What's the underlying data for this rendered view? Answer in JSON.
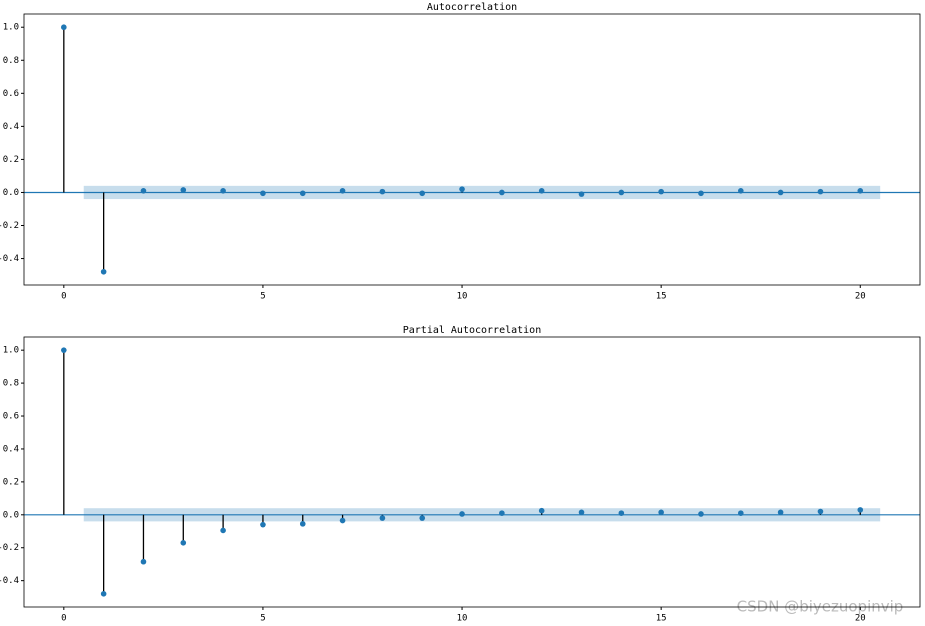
{
  "chart_data": [
    {
      "type": "stem",
      "title": "Autocorrelation",
      "color": "#1f77b4",
      "stem_color": "#000000",
      "band_color": "#1f77b4",
      "x": [
        0,
        1,
        2,
        3,
        4,
        5,
        6,
        7,
        8,
        9,
        10,
        11,
        12,
        13,
        14,
        15,
        16,
        17,
        18,
        19,
        20
      ],
      "values": [
        1.0,
        -0.48,
        0.01,
        0.015,
        0.01,
        -0.005,
        -0.005,
        0.01,
        0.005,
        -0.005,
        0.02,
        0.0,
        0.01,
        -0.01,
        0.0,
        0.005,
        -0.005,
        0.01,
        0.0,
        0.005,
        0.01
      ],
      "band": 0.04,
      "xlim": [
        -1,
        21.5
      ],
      "ylim": [
        -0.56,
        1.08
      ],
      "xticks": [
        0,
        5,
        10,
        15,
        20
      ],
      "yticks": [
        {
          "value": -0.4,
          "label": "-0.4"
        },
        {
          "value": -0.2,
          "label": "-0.2"
        },
        {
          "value": 0,
          "label": "0.0"
        },
        {
          "value": 0.2,
          "label": "0.2"
        },
        {
          "value": 0.4,
          "label": "0.4"
        },
        {
          "value": 0.6,
          "label": "0.6"
        },
        {
          "value": 0.8,
          "label": "0.8"
        },
        {
          "value": 1.0,
          "label": "1.0"
        }
      ]
    },
    {
      "type": "stem",
      "title": "Partial Autocorrelation",
      "color": "#1f77b4",
      "stem_color": "#000000",
      "band_color": "#1f77b4",
      "x": [
        0,
        1,
        2,
        3,
        4,
        5,
        6,
        7,
        8,
        9,
        10,
        11,
        12,
        13,
        14,
        15,
        16,
        17,
        18,
        19,
        20
      ],
      "values": [
        1.0,
        -0.48,
        -0.285,
        -0.17,
        -0.095,
        -0.06,
        -0.055,
        -0.035,
        -0.02,
        -0.02,
        0.005,
        0.01,
        0.025,
        0.015,
        0.01,
        0.015,
        0.005,
        0.01,
        0.015,
        0.02,
        0.03
      ],
      "band": 0.04,
      "xlim": [
        -1,
        21.5
      ],
      "ylim": [
        -0.56,
        1.08
      ],
      "xticks": [
        0,
        5,
        10,
        15,
        20
      ],
      "yticks": [
        {
          "value": -0.4,
          "label": "-0.4"
        },
        {
          "value": -0.2,
          "label": "-0.2"
        },
        {
          "value": 0,
          "label": "0.0"
        },
        {
          "value": 0.2,
          "label": "0.2"
        },
        {
          "value": 0.4,
          "label": "0.4"
        },
        {
          "value": 0.6,
          "label": "0.6"
        },
        {
          "value": 0.8,
          "label": "0.8"
        },
        {
          "value": 1.0,
          "label": "1.0"
        }
      ]
    }
  ],
  "watermark": "CSDN @biyezuopinvip"
}
